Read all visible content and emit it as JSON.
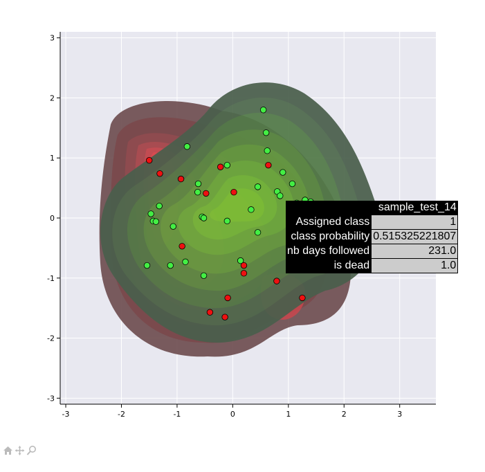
{
  "chart_data": {
    "type": "scatter",
    "xlim": [
      -3.1,
      3.65
    ],
    "ylim": [
      -3.1,
      3.1
    ],
    "xticks": [
      -3,
      -2,
      -1,
      0,
      1,
      2,
      3
    ],
    "yticks": [
      -3,
      -2,
      -1,
      0,
      1,
      2,
      3
    ],
    "grid": true,
    "background": "#e8e8f0",
    "series": [
      {
        "color": "#44ee44",
        "points": [
          [
            0.55,
            1.8
          ],
          [
            0.6,
            1.42
          ],
          [
            0.62,
            1.12
          ],
          [
            0.9,
            0.76
          ],
          [
            1.07,
            0.57
          ],
          [
            0.8,
            0.44
          ],
          [
            0.85,
            0.37
          ],
          [
            1.15,
            0.25
          ],
          [
            1.3,
            0.3
          ],
          [
            1.4,
            0.27
          ],
          [
            0.45,
            0.52
          ],
          [
            0.33,
            0.14
          ],
          [
            -0.1,
            0.88
          ],
          [
            -0.82,
            1.19
          ],
          [
            -0.62,
            0.57
          ],
          [
            -0.63,
            0.43
          ],
          [
            -1.32,
            0.2
          ],
          [
            -1.47,
            0.07
          ],
          [
            -1.43,
            -0.05
          ],
          [
            -1.38,
            -0.06
          ],
          [
            -0.55,
            0.02
          ],
          [
            -0.52,
            0.0
          ],
          [
            -0.1,
            -0.05
          ],
          [
            -1.07,
            -0.14
          ],
          [
            0.45,
            -0.24
          ],
          [
            -0.85,
            -0.73
          ],
          [
            -1.12,
            -0.79
          ],
          [
            -1.54,
            -0.79
          ],
          [
            -0.52,
            -0.96
          ],
          [
            0.14,
            -0.71
          ]
        ]
      },
      {
        "color": "#ee1111",
        "points": [
          [
            -1.5,
            0.96
          ],
          [
            -1.31,
            0.74
          ],
          [
            -0.93,
            0.65
          ],
          [
            -0.22,
            0.85
          ],
          [
            -0.48,
            0.41
          ],
          [
            0.02,
            0.43
          ],
          [
            0.64,
            0.88
          ],
          [
            -0.91,
            -0.47
          ],
          [
            0.2,
            -0.79
          ],
          [
            0.2,
            -0.92
          ],
          [
            0.79,
            -1.05
          ],
          [
            -0.09,
            -1.33
          ],
          [
            -0.41,
            -1.57
          ],
          [
            -0.14,
            -1.65
          ],
          [
            1.25,
            -1.33
          ]
        ]
      }
    ]
  },
  "tooltip": {
    "title": "sample_test_14",
    "rows": [
      {
        "label": "Assigned class",
        "value": "1"
      },
      {
        "label": "class probability",
        "value": "0.515325221807"
      },
      {
        "label": "nb days followed",
        "value": "231.0"
      },
      {
        "label": "is dead",
        "value": "1.0"
      }
    ]
  },
  "toolbar": {
    "icons": [
      "home-icon",
      "pan-icon",
      "zoom-icon"
    ]
  }
}
